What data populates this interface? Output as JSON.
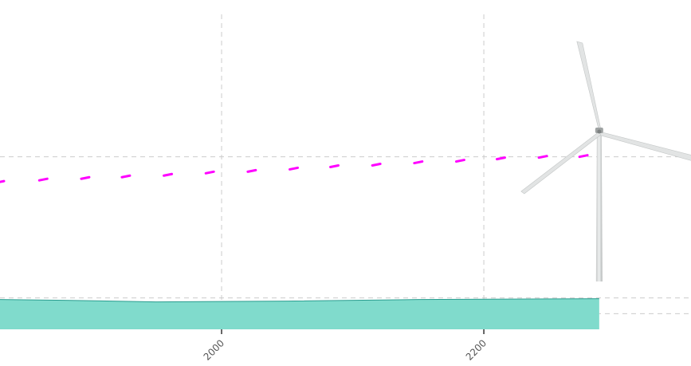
{
  "chart_data": {
    "type": "area",
    "title": "",
    "xlabel": "",
    "ylabel": "",
    "xlim": [
      1831,
      2358
    ],
    "ylim": [
      0,
      420
    ],
    "grid": true,
    "x_ticks": [
      {
        "value": 2000,
        "label": "2000"
      },
      {
        "value": 2200,
        "label": "2200"
      }
    ],
    "y_gridlines": [
      20,
      40,
      220
    ],
    "colors": {
      "area_fill": "#80dbcc",
      "area_stroke": "#2a9d8f",
      "dotted_line": "#ff00ff",
      "grid": "#cccccc",
      "axis": "#333333"
    },
    "series": [
      {
        "kind": "area",
        "x": [
          1831,
          1880,
          1950,
          2050,
          2150,
          2288
        ],
        "values": [
          38,
          37,
          35,
          36,
          38,
          39
        ]
      },
      {
        "kind": "dotted-line",
        "x": [
          1831,
          1864,
          1896,
          1927,
          1959,
          1991,
          2023,
          2055,
          2086,
          2118,
          2150,
          2182,
          2213,
          2245,
          2276
        ],
        "values": [
          188,
          191,
          193,
          195,
          197,
          200,
          202,
          205,
          208,
          210,
          213,
          215,
          218,
          220,
          221
        ]
      }
    ],
    "annotations": [
      {
        "type": "image",
        "icon": "wind-turbine-icon",
        "x": 2288
      }
    ]
  }
}
